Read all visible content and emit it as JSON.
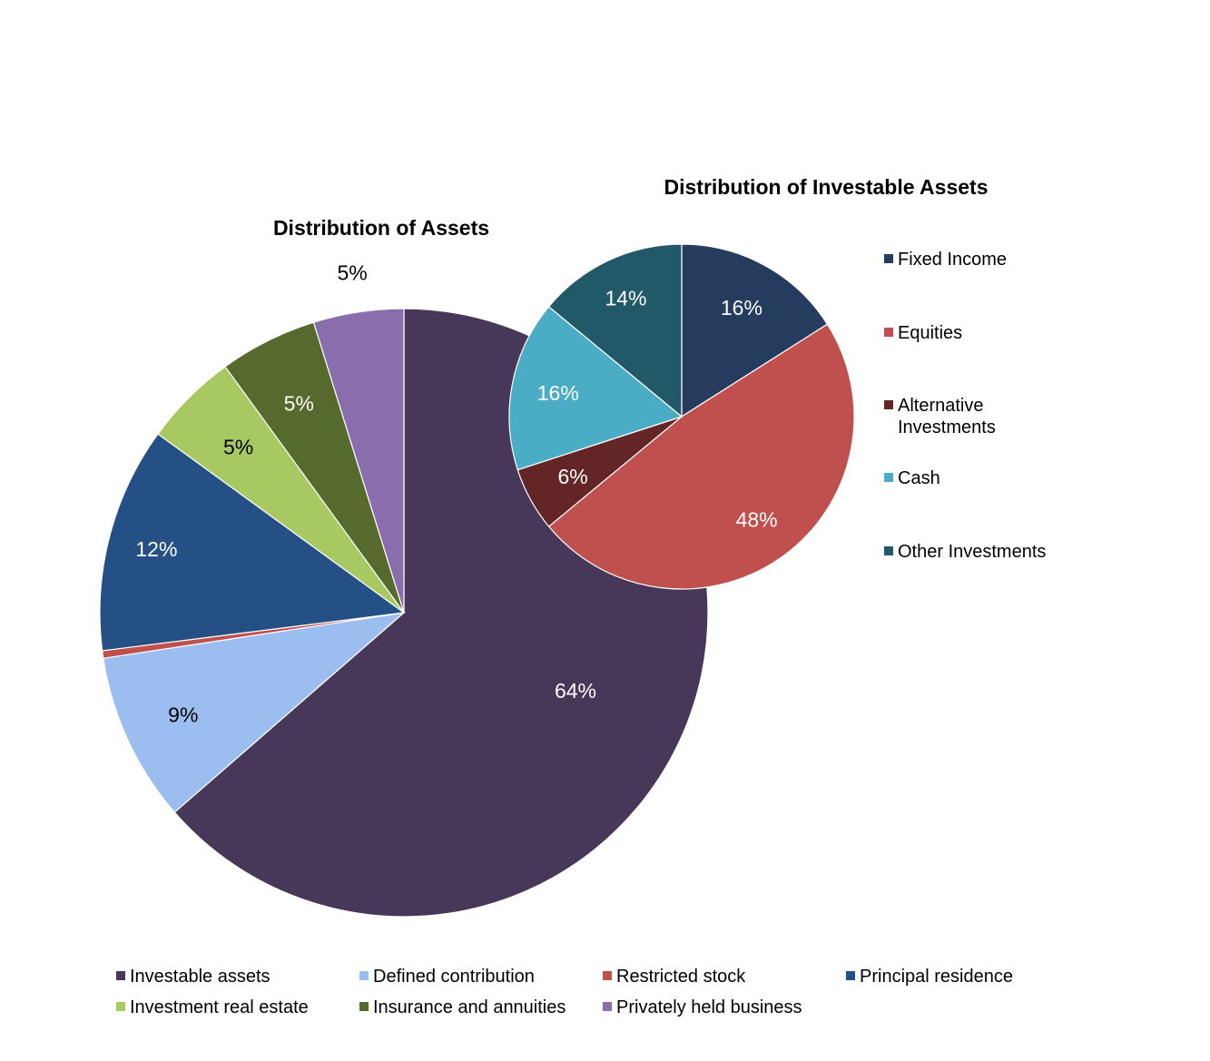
{
  "chart_data": [
    {
      "type": "pie",
      "title": "Distribution of Assets",
      "start_angle_deg": 0,
      "direction": "clockwise",
      "border": "#ffffff",
      "categories": [
        "Investable assets",
        "Defined contribution",
        "Restricted stock",
        "Principal residence",
        "Investment real estate",
        "Insurance and annuities",
        "Privately held business"
      ],
      "values": [
        63.6,
        9.0,
        0.4,
        12.0,
        5.0,
        5.2,
        4.8
      ],
      "data_labels": [
        "64%",
        "9%",
        "",
        "12%",
        "5%",
        "5%",
        "5%"
      ],
      "label_colors": [
        "#ffffff",
        "#000000",
        "#000000",
        "#ffffff",
        "#000000",
        "#ffffff",
        "#000000"
      ],
      "colors": [
        "#47385a",
        "#9bbdf0",
        "#c0504d",
        "#255085",
        "#a8c862",
        "#576a2e",
        "#8a6dad"
      ],
      "legend_position": "bottom"
    },
    {
      "type": "pie",
      "title": "Distribution of Investable Assets",
      "start_angle_deg": 0,
      "direction": "clockwise",
      "border": "#ffffff",
      "categories": [
        "Fixed Income",
        "Equities",
        "Alternative Investments",
        "Cash",
        "Other Investments"
      ],
      "legend_labels": [
        [
          "Fixed Income"
        ],
        [
          "Equities"
        ],
        [
          "Alternative",
          "Investments"
        ],
        [
          "Cash"
        ],
        [
          "Other Investments"
        ]
      ],
      "values": [
        16,
        48,
        6,
        16,
        14
      ],
      "data_labels": [
        "16%",
        "48%",
        "6%",
        "16%",
        "14%"
      ],
      "label_colors": [
        "#ffffff",
        "#ffffff",
        "#ffffff",
        "#ffffff",
        "#ffffff"
      ],
      "colors": [
        "#253c5e",
        "#c0504d",
        "#632526",
        "#4bacc6",
        "#215968"
      ],
      "legend_position": "right"
    }
  ]
}
